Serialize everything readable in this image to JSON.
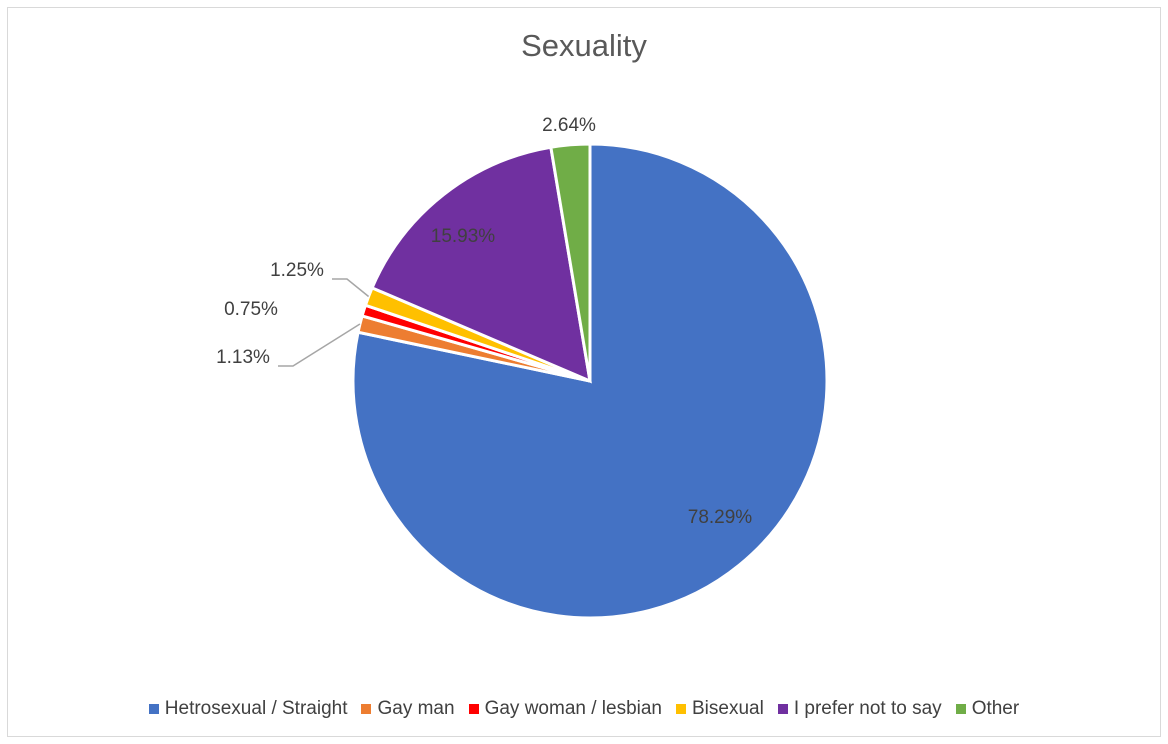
{
  "chart_data": {
    "type": "pie",
    "title": "Sexuality",
    "categories": [
      "Hetrosexual / Straight",
      "Gay man",
      "Gay woman / lesbian",
      "Bisexual",
      "I prefer not to say",
      "Other"
    ],
    "values": [
      78.29,
      1.13,
      0.75,
      1.25,
      15.93,
      2.64
    ],
    "labels": [
      "78.29%",
      "1.13%",
      "0.75%",
      "1.25%",
      "15.93%",
      "2.64%"
    ],
    "colors": [
      "#4472c4",
      "#ed7d31",
      "#ff0000",
      "#ffc000",
      "#7030a0",
      "#70ad47"
    ],
    "legend_position": "bottom"
  }
}
